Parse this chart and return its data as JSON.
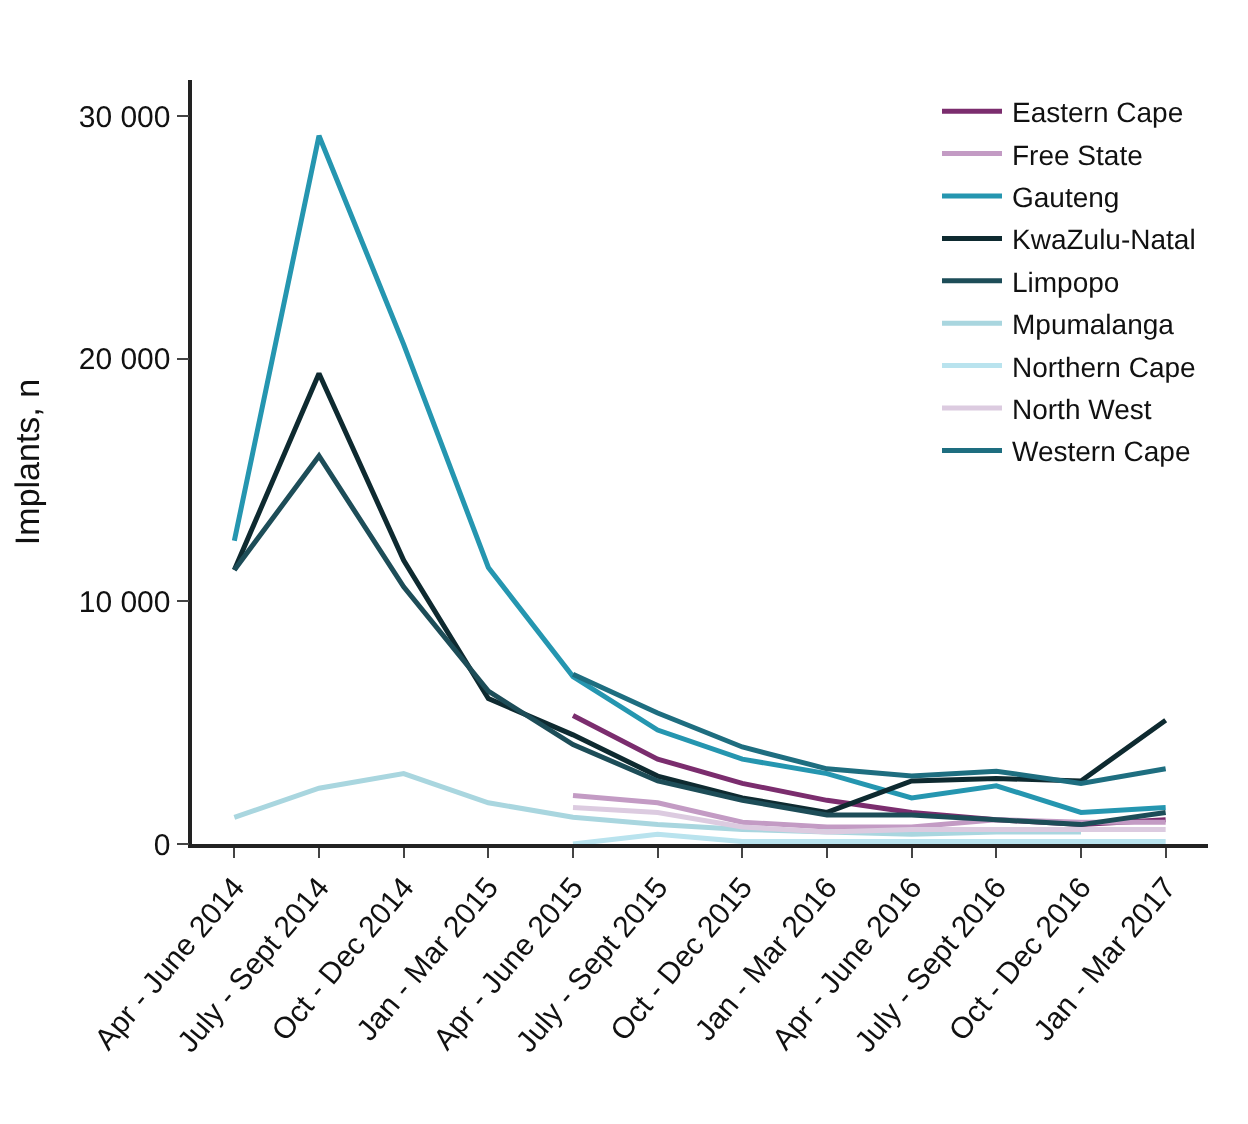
{
  "chart_data": {
    "type": "line",
    "ylabel": "Implants, n",
    "categories": [
      "Apr - June 2014",
      "July - Sept 2014",
      "Oct - Dec 2014",
      "Jan - Mar 2015",
      "Apr - June 2015",
      "July - Sept 2015",
      "Oct - Dec 2015",
      "Jan - Mar 2016",
      "Apr - June 2016",
      "July - Sept 2016",
      "Oct - Dec 2016",
      "Jan - Mar 2017"
    ],
    "series": [
      {
        "name": "Eastern Cape",
        "color": "#7b2d6e",
        "values": [
          null,
          null,
          null,
          null,
          5300,
          3500,
          2500,
          1800,
          1300,
          1000,
          800,
          1000
        ]
      },
      {
        "name": "Free State",
        "color": "#c39bc4",
        "values": [
          null,
          null,
          null,
          null,
          2000,
          1700,
          900,
          700,
          700,
          1000,
          900,
          900
        ]
      },
      {
        "name": "Gauteng",
        "color": "#2596b0",
        "values": [
          12500,
          29200,
          20600,
          11400,
          6900,
          4700,
          3500,
          2900,
          1900,
          2400,
          1300,
          1500
        ]
      },
      {
        "name": "KwaZulu-Natal",
        "color": "#0e2a30",
        "values": [
          11300,
          19400,
          11700,
          6000,
          4500,
          2800,
          1900,
          1300,
          2600,
          2700,
          2600,
          5100
        ]
      },
      {
        "name": "Limpopo",
        "color": "#1d4d58",
        "values": [
          11300,
          16000,
          10600,
          6300,
          4100,
          2600,
          1800,
          1200,
          1200,
          1000,
          800,
          1300
        ]
      },
      {
        "name": "Mpumalanga",
        "color": "#a9d6df",
        "values": [
          1100,
          2300,
          2900,
          1700,
          1100,
          800,
          600,
          500,
          400,
          500,
          500,
          null
        ]
      },
      {
        "name": "Northern Cape",
        "color": "#b9e3ee",
        "values": [
          null,
          null,
          null,
          null,
          0,
          400,
          100,
          100,
          100,
          100,
          100,
          100
        ]
      },
      {
        "name": "North West",
        "color": "#dccbe0",
        "values": [
          null,
          null,
          null,
          null,
          1500,
          1300,
          700,
          500,
          600,
          600,
          600,
          600
        ]
      },
      {
        "name": "Western Cape",
        "color": "#1e6e80",
        "values": [
          null,
          null,
          null,
          null,
          7000,
          5400,
          4000,
          3100,
          2800,
          3000,
          2500,
          3100
        ]
      }
    ],
    "ylim": [
      0,
      31500
    ],
    "yticks": [
      {
        "value": 0,
        "label": "0"
      },
      {
        "value": 10000,
        "label": "10 000"
      },
      {
        "value": 20000,
        "label": "20 000"
      },
      {
        "value": 30000,
        "label": "30 000"
      }
    ],
    "legend": "top right",
    "marker": "none",
    "line_style": "solid"
  }
}
